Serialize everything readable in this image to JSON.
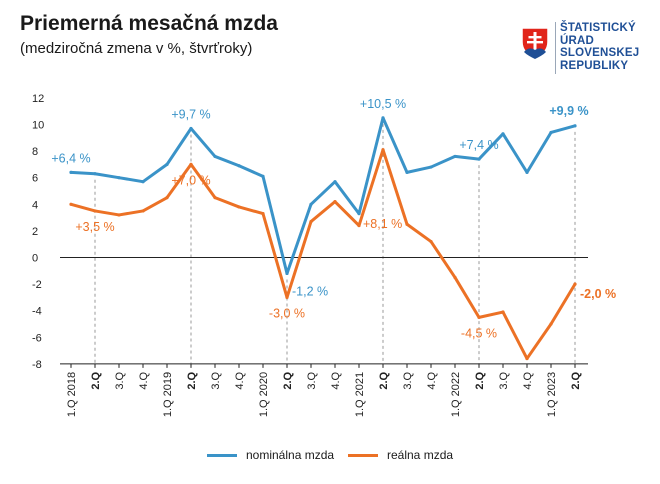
{
  "title": "Priemerná mesačná mzda",
  "subtitle": "(medziročná zmena v %, štvrťroky)",
  "logo": {
    "lines": [
      "ŠTATISTICKÝ",
      "ÚRAD",
      "SLOVENSKEJ",
      "REPUBLIKY"
    ],
    "colors": {
      "text": "#1f4f96",
      "red": "#e1251b",
      "blue": "#1f4f96",
      "white": "#ffffff"
    }
  },
  "chart_data": {
    "type": "line",
    "categories": [
      "1.Q 2018",
      "2.Q",
      "3.Q",
      "4.Q",
      "1.Q 2019",
      "2.Q",
      "3.Q",
      "4.Q",
      "1.Q 2020",
      "2.Q",
      "3.Q",
      "4.Q",
      "1.Q 2021",
      "2.Q",
      "3.Q",
      "4.Q",
      "1.Q 2022",
      "2.Q",
      "3.Q",
      "4.Q",
      "1.Q 2023",
      "2.Q"
    ],
    "bold_categories": [
      1,
      5,
      9,
      13,
      17,
      21
    ],
    "yticks": [
      12,
      10,
      8,
      6,
      4,
      2,
      0,
      -2,
      -4,
      -6,
      -8
    ],
    "ylim": [
      -8,
      12
    ],
    "series": [
      {
        "name": "nominálna mzda",
        "color": "#3a93c8",
        "values": [
          6.4,
          6.3,
          6.0,
          5.7,
          7.0,
          9.7,
          7.6,
          6.9,
          6.1,
          -1.2,
          4.0,
          5.7,
          3.3,
          10.5,
          6.4,
          6.8,
          7.6,
          7.4,
          9.3,
          6.4,
          9.4,
          9.9
        ]
      },
      {
        "name": "reálna mzda",
        "color": "#ec7125",
        "values": [
          4.0,
          3.5,
          3.2,
          3.5,
          4.5,
          7.0,
          4.5,
          3.8,
          3.3,
          -3.0,
          2.7,
          4.2,
          2.4,
          8.1,
          2.5,
          1.2,
          -1.5,
          -4.5,
          -4.1,
          -7.6,
          -5.0,
          -2.0
        ]
      }
    ],
    "annotations": [
      {
        "series": 0,
        "index": 0,
        "text": "+6,4 %",
        "bold": false,
        "pos": "above"
      },
      {
        "series": 0,
        "index": 5,
        "text": "+9,7 %",
        "bold": false,
        "pos": "above"
      },
      {
        "series": 0,
        "index": 9,
        "text": "-1,2 %",
        "bold": false,
        "pos": "right"
      },
      {
        "series": 0,
        "index": 13,
        "text": "+10,5 %",
        "bold": false,
        "pos": "above"
      },
      {
        "series": 0,
        "index": 17,
        "text": "+7,4 %",
        "bold": false,
        "pos": "above"
      },
      {
        "series": 0,
        "index": 21,
        "text": "+9,9 %",
        "bold": true,
        "pos": "above"
      },
      {
        "series": 1,
        "index": 1,
        "text": "+3,5 %",
        "bold": false,
        "pos": "below"
      },
      {
        "series": 1,
        "index": 5,
        "text": "+7,0 %",
        "bold": false,
        "pos": "below"
      },
      {
        "series": 1,
        "index": 9,
        "text": "-3,0 %",
        "bold": false,
        "pos": "below"
      },
      {
        "series": 1,
        "index": 13,
        "text": "+8,1 %",
        "bold": false,
        "pos": "left"
      },
      {
        "series": 1,
        "index": 17,
        "text": "-4,5 %",
        "bold": false,
        "pos": "below"
      },
      {
        "series": 1,
        "index": 21,
        "text": "-2,0 %",
        "bold": true,
        "pos": "right"
      }
    ],
    "legend": [
      "nominálna mzda",
      "reálna mzda"
    ],
    "legend_position": "bottom",
    "grid": false
  }
}
